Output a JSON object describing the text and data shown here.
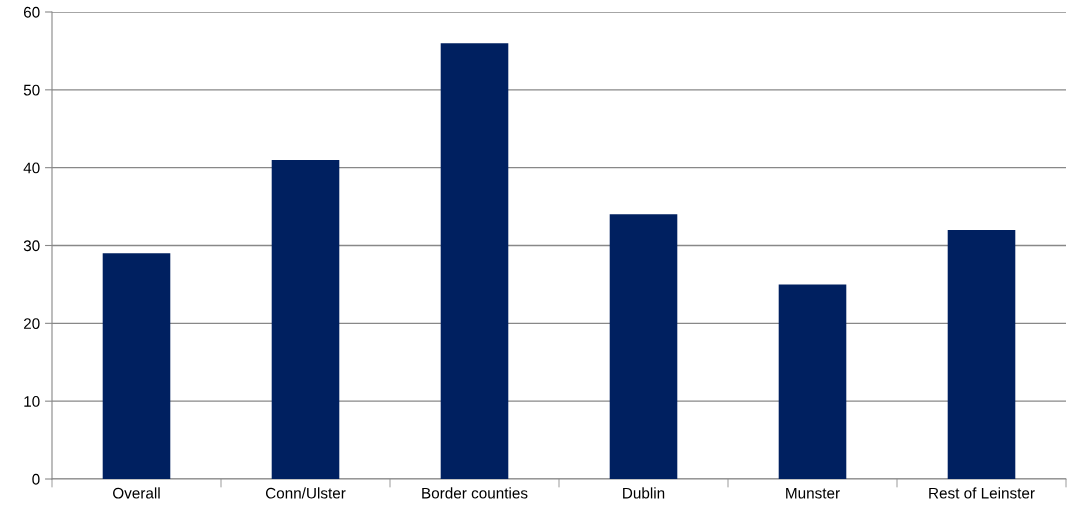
{
  "chart_data": {
    "type": "bar",
    "categories": [
      "Overall",
      "Conn/Ulster",
      "Border counties",
      "Dublin",
      "Munster",
      "Rest of Leinster"
    ],
    "values": [
      29,
      41,
      56,
      34,
      25,
      32
    ],
    "color": "#002060",
    "ylim": [
      0,
      60
    ],
    "yticks": [
      0,
      10,
      20,
      30,
      40,
      50,
      60
    ],
    "grid": "y"
  }
}
